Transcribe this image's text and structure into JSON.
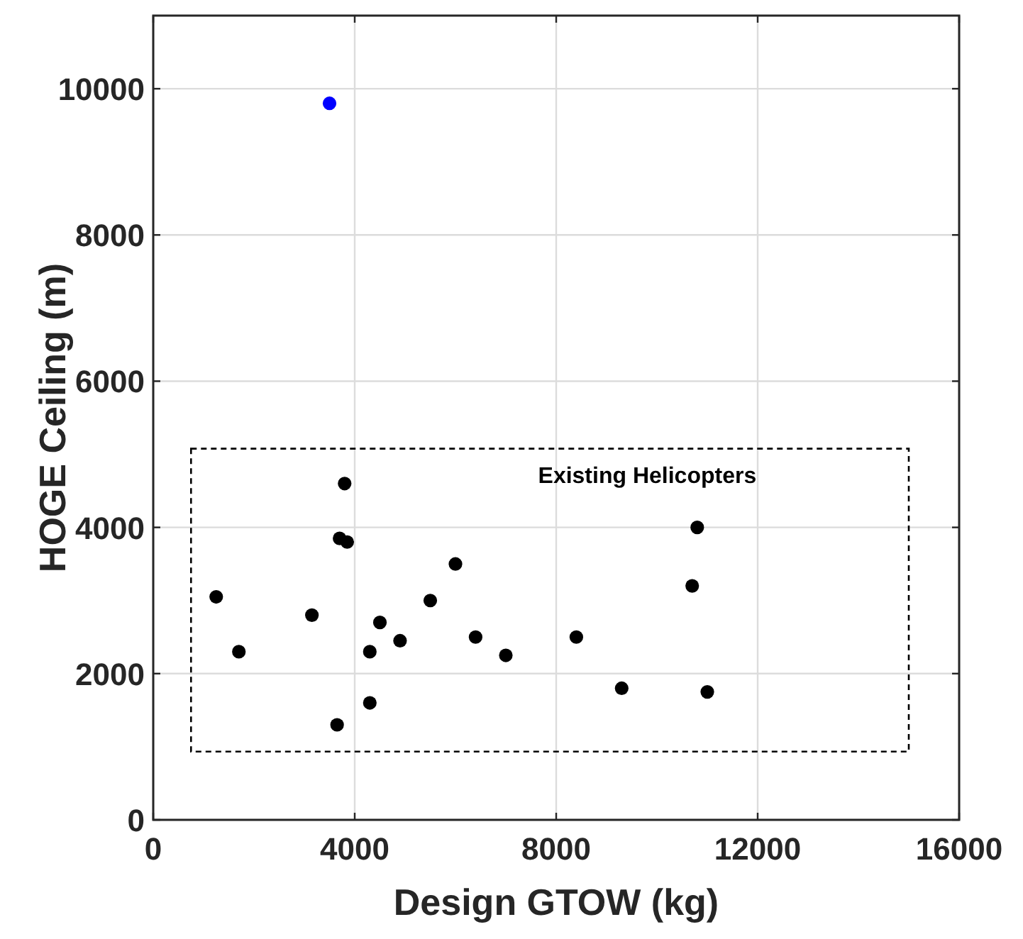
{
  "chart_data": {
    "type": "scatter",
    "xlabel": "Design GTOW (kg)",
    "ylabel": "HOGE Ceiling (m)",
    "xlim": [
      0,
      16000
    ],
    "ylim": [
      0,
      11000
    ],
    "xticks": [
      0,
      4000,
      8000,
      12000,
      16000
    ],
    "yticks": [
      0,
      2000,
      4000,
      6000,
      8000,
      10000
    ],
    "grid": true,
    "marker": "circle",
    "annotations": [
      "Existing Helicopters"
    ],
    "series": [
      {
        "color": "#000000",
        "x": [
          3800,
          3700,
          3850,
          6000,
          1250,
          3150,
          4500,
          5500,
          1700,
          4300,
          4900,
          6400,
          7000,
          8400,
          9300,
          10800,
          10700,
          11000,
          4300,
          3650
        ],
        "values": [
          4600,
          3850,
          3800,
          3500,
          3050,
          2800,
          2700,
          3000,
          2300,
          2300,
          2450,
          2500,
          2250,
          2500,
          1800,
          4000,
          3200,
          1750,
          1600,
          1300
        ]
      },
      {
        "color": "#0000ff",
        "x": [
          3500
        ],
        "values": [
          9800
        ]
      }
    ]
  }
}
